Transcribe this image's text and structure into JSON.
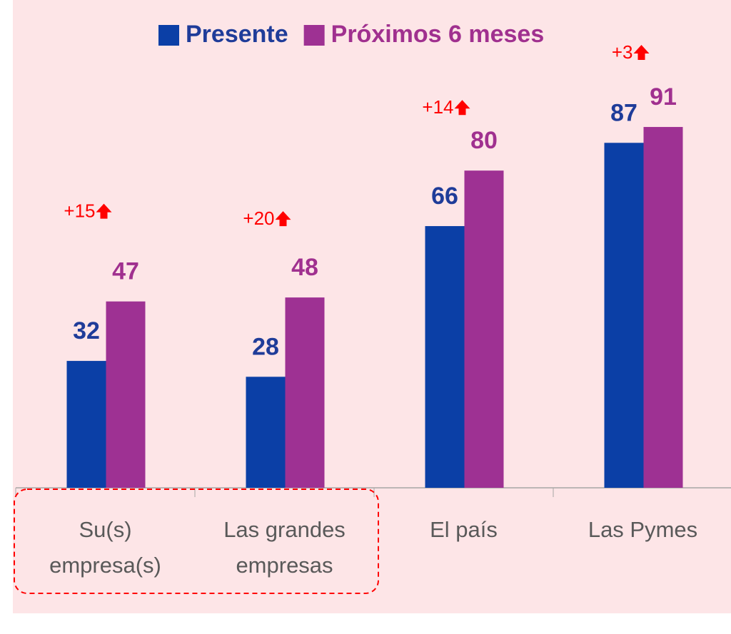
{
  "chart_data": {
    "type": "bar",
    "categories": [
      "Su(s)\nempresa(s)",
      "Las grandes\nempresas",
      "El país",
      "Las Pymes"
    ],
    "series": [
      {
        "name": "Presente",
        "color": "#0b3fa6",
        "values": [
          32,
          28,
          66,
          87
        ]
      },
      {
        "name": "Próximos 6 meses",
        "color": "#9e3193",
        "values": [
          47,
          48,
          80,
          91
        ]
      }
    ],
    "annotations": [
      "+15",
      "+20",
      "+14",
      "+3"
    ],
    "ylim": [
      0,
      100
    ],
    "legend": "top"
  }
}
